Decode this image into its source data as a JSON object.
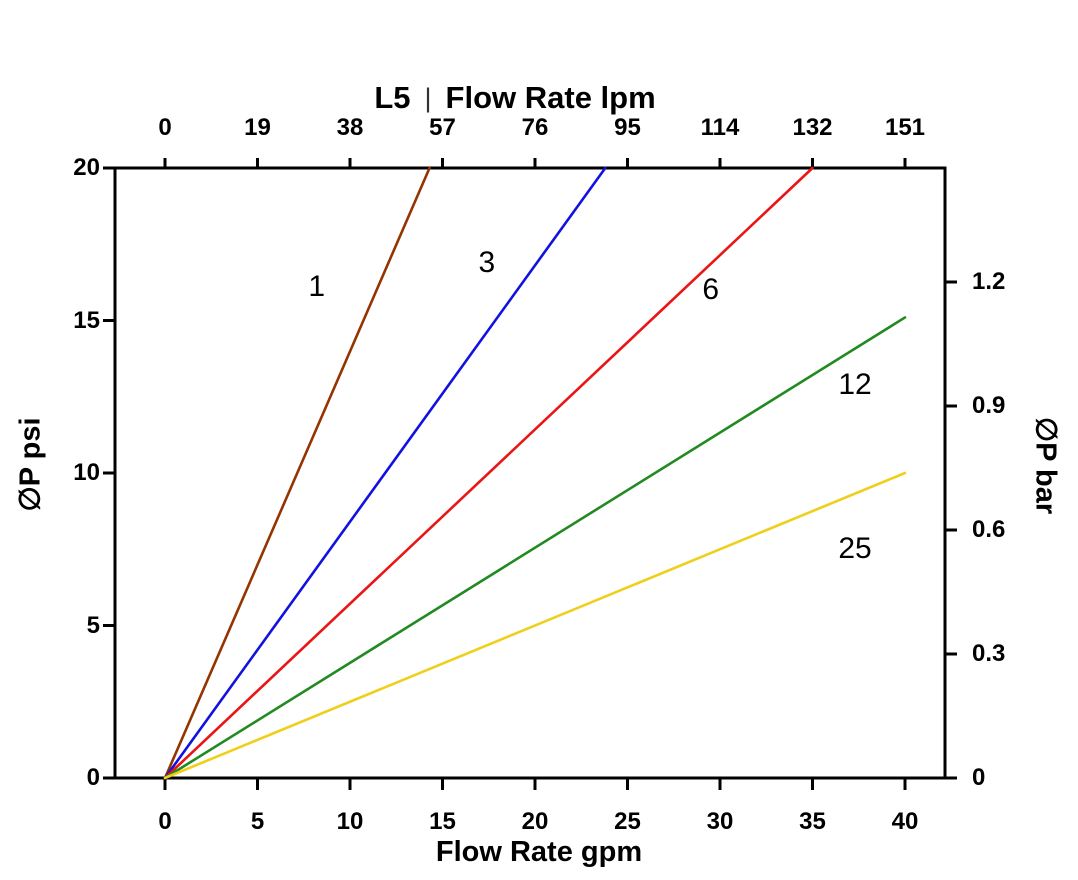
{
  "header": {
    "model": "L5",
    "separator": "|",
    "top_axis_label": "Flow Rate lpm"
  },
  "axes": {
    "top": {
      "label": "Flow Rate lpm",
      "ticks": [
        "0",
        "19",
        "38",
        "57",
        "76",
        "95",
        "114",
        "132",
        "151"
      ]
    },
    "bottom": {
      "label": "Flow Rate gpm",
      "ticks": [
        "0",
        "5",
        "10",
        "15",
        "20",
        "25",
        "30",
        "35",
        "40"
      ]
    },
    "left": {
      "label": "∅P psi",
      "ticks": [
        "0",
        "5",
        "10",
        "15",
        "20"
      ]
    },
    "right": {
      "label": "∅P bar",
      "ticks": [
        "0",
        "0.3",
        "0.6",
        "0.9",
        "1.2"
      ]
    }
  },
  "chart_data": {
    "type": "line",
    "title": "L5 | Flow Rate lpm",
    "xlabel": "Flow Rate gpm",
    "x2label": "Flow Rate lpm",
    "ylabel": "∅P psi",
    "y2label": "∅P bar",
    "xlim": [
      0,
      40
    ],
    "ylim": [
      0,
      20
    ],
    "x2lim": [
      0,
      151
    ],
    "y2lim": [
      0,
      1.48
    ],
    "grid": false,
    "legend": "inline-labels",
    "series": [
      {
        "name": "1",
        "color": "#943400",
        "points": [
          [
            0,
            0
          ],
          [
            14.3,
            20
          ]
        ],
        "label": {
          "x": 8.2,
          "y": 16.1
        }
      },
      {
        "name": "3",
        "color": "#1212e0",
        "points": [
          [
            0,
            0
          ],
          [
            23.8,
            20
          ]
        ],
        "label": {
          "x": 17.4,
          "y": 16.9
        }
      },
      {
        "name": "6",
        "color": "#ea1515",
        "points": [
          [
            0,
            0
          ],
          [
            35.0,
            20
          ]
        ],
        "label": {
          "x": 29.5,
          "y": 16.0
        }
      },
      {
        "name": "12",
        "color": "#218a21",
        "points": [
          [
            0,
            0
          ],
          [
            40,
            15.1
          ]
        ],
        "label": {
          "x": 37.3,
          "y": 12.9
        }
      },
      {
        "name": "25",
        "color": "#f0cf1c",
        "points": [
          [
            0,
            0
          ],
          [
            40,
            10.0
          ]
        ],
        "label": {
          "x": 37.3,
          "y": 7.5
        }
      }
    ]
  }
}
